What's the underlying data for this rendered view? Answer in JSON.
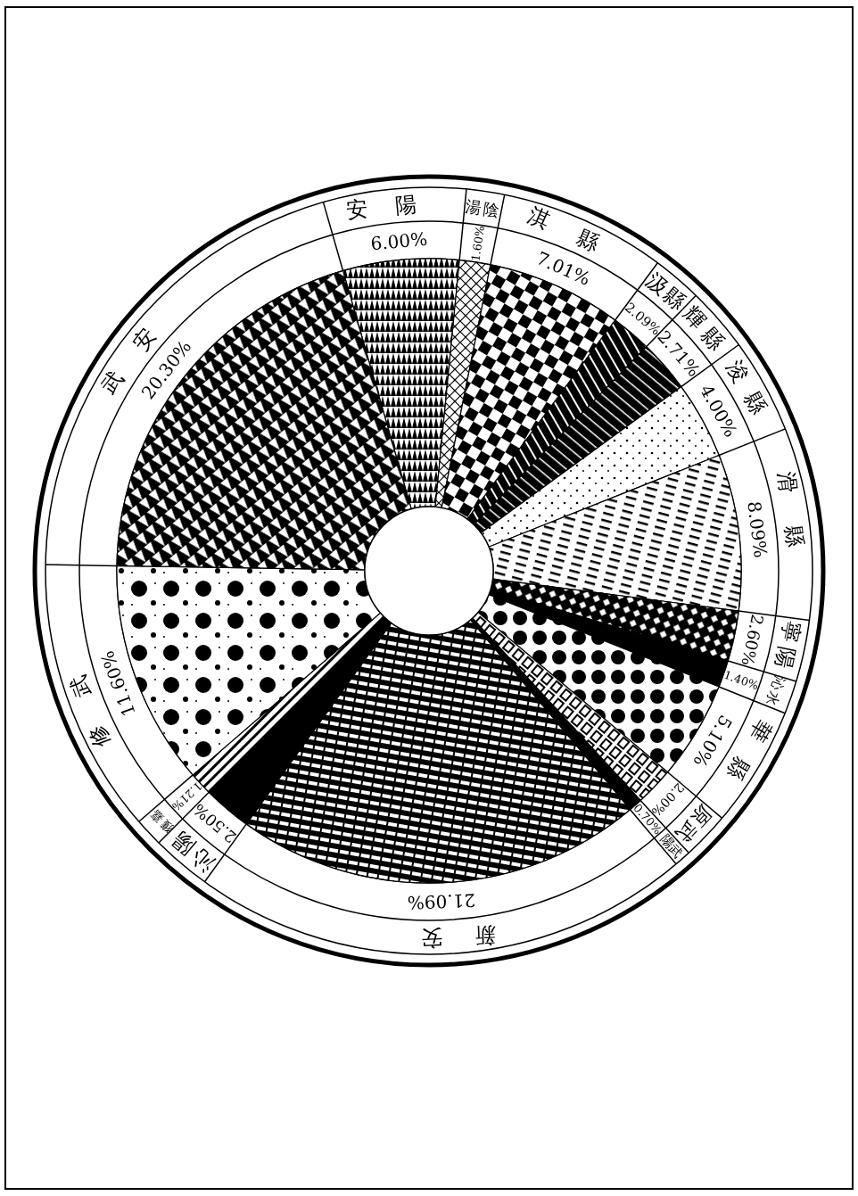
{
  "chart_data": {
    "type": "donut",
    "categories": [
      "安陽",
      "湯陰",
      "淇縣",
      "汲縣",
      "輝縣",
      "浚縣",
      "滑縣",
      "寧陽",
      "沁水",
      "華縣",
      "原武",
      "陽武",
      "新安",
      "沁陽",
      "獲嘉",
      "修武",
      "武安"
    ],
    "values": [
      6.0,
      1.6,
      7.01,
      2.09,
      2.71,
      4.0,
      8.09,
      2.6,
      1.4,
      5.1,
      2.0,
      0.7,
      21.09,
      2.5,
      1.21,
      11.6,
      20.3
    ],
    "value_labels": [
      "6.00%",
      "1.60%",
      "7.01%",
      "2.09%",
      "2.71%",
      "4.00%",
      "8.09%",
      "2.60%",
      "1.40%",
      "5.10%",
      "2.00%",
      "0.70%",
      "21.09%",
      "2.50%",
      "1.21%",
      "11.60%",
      "20.30%"
    ]
  }
}
